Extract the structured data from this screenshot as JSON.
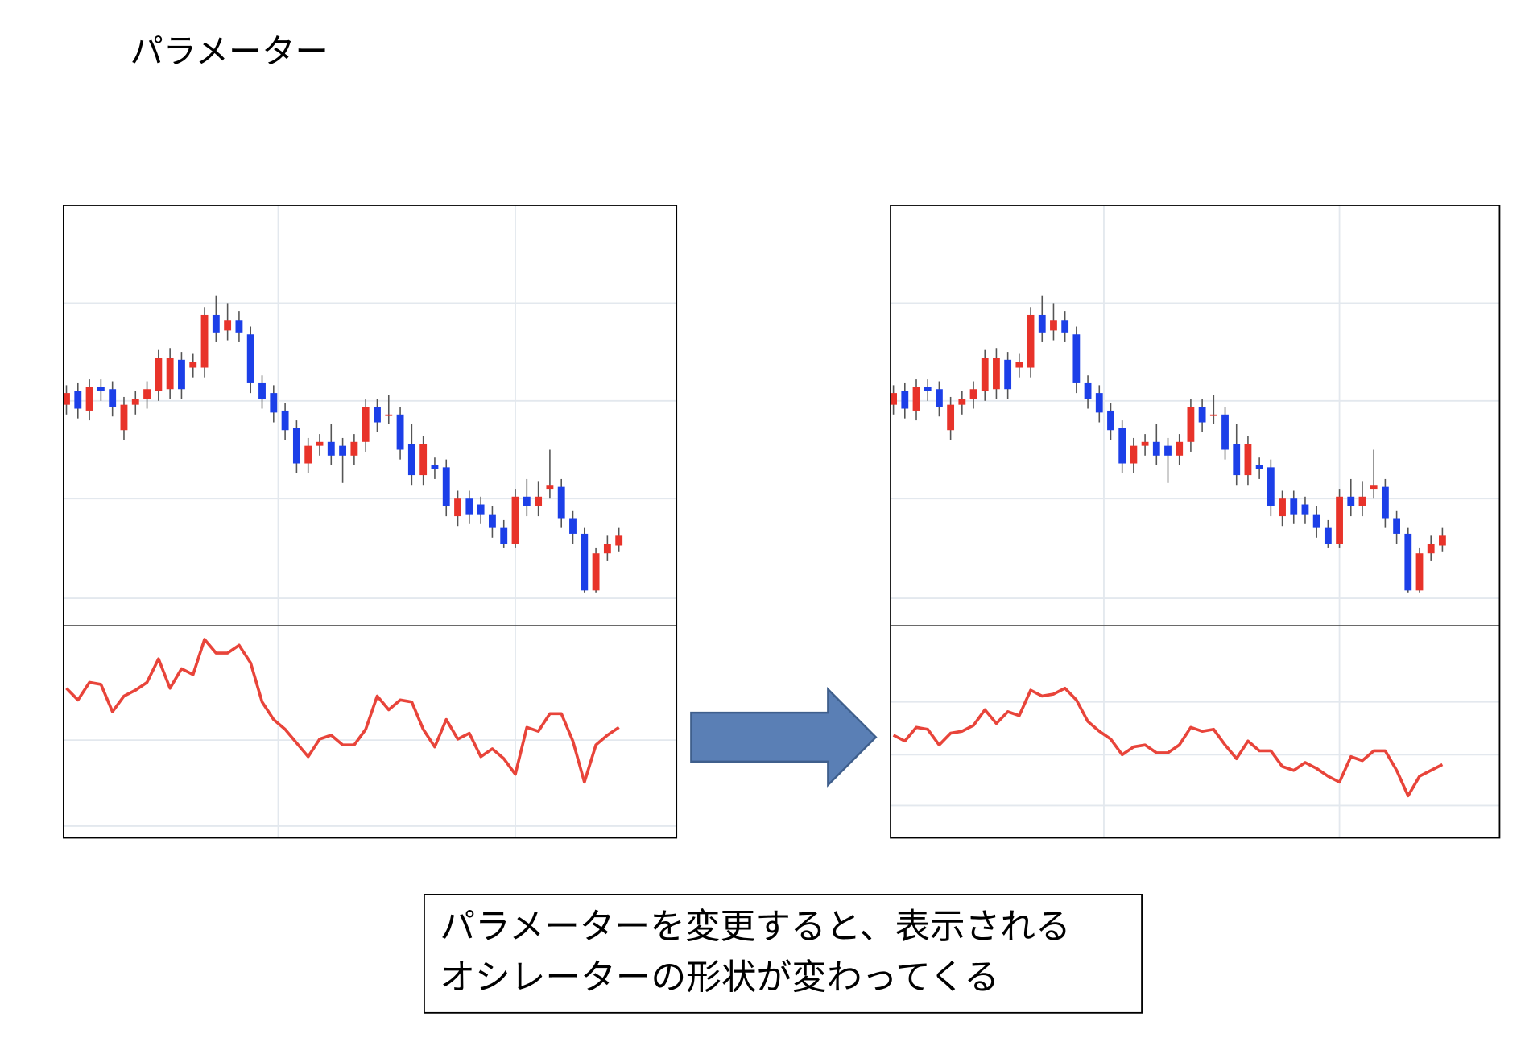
{
  "title": "パラメーター",
  "chart_data": [
    {
      "type": "candlestick",
      "open": [
        226,
        240,
        220,
        244,
        242,
        200,
        226,
        232,
        240,
        242,
        272,
        264,
        264,
        318,
        302,
        312,
        298,
        248,
        238,
        220,
        202,
        166,
        184,
        188,
        184,
        174,
        188,
        224,
        216,
        216,
        186,
        154,
        164,
        162,
        112,
        130,
        124,
        114,
        100,
        84,
        132,
        122,
        140,
        142,
        110,
        94,
        36,
        74,
        82
      ],
      "high": [
        246,
        248,
        252,
        252,
        250,
        234,
        240,
        250,
        282,
        284,
        280,
        278,
        326,
        338,
        330,
        322,
        306,
        256,
        246,
        228,
        210,
        192,
        196,
        206,
        192,
        196,
        232,
        232,
        236,
        224,
        206,
        194,
        172,
        170,
        138,
        138,
        132,
        122,
        108,
        140,
        150,
        148,
        180,
        150,
        118,
        100,
        80,
        92,
        100
      ],
      "low": [
        216,
        212,
        210,
        230,
        214,
        190,
        216,
        222,
        230,
        232,
        232,
        254,
        254,
        290,
        292,
        290,
        238,
        222,
        208,
        190,
        156,
        156,
        174,
        164,
        146,
        164,
        178,
        198,
        206,
        170,
        144,
        144,
        150,
        112,
        102,
        104,
        104,
        90,
        80,
        80,
        112,
        112,
        130,
        100,
        84,
        34,
        34,
        66,
        76
      ],
      "close": [
        238,
        222,
        244,
        240,
        224,
        226,
        232,
        242,
        274,
        274,
        242,
        270,
        318,
        300,
        312,
        300,
        248,
        232,
        218,
        200,
        166,
        184,
        188,
        174,
        174,
        188,
        224,
        208,
        216,
        180,
        154,
        186,
        160,
        122,
        130,
        114,
        114,
        100,
        84,
        132,
        122,
        132,
        144,
        110,
        94,
        36,
        74,
        84,
        92
      ],
      "up_color": "#e8332a",
      "down_color": "#1c3fe8",
      "xlim": [
        -0.25,
        53
      ],
      "xticks": [
        18.4,
        39
      ],
      "ylim": [
        0,
        430
      ],
      "yticks": [
        28,
        130,
        230,
        330
      ],
      "grid": true,
      "oscillator": {
        "type": "line",
        "color": "#e8443a",
        "values": [
          153,
          141,
          159,
          157,
          129,
          145,
          151,
          159,
          183,
          153,
          173,
          167,
          203,
          189,
          189,
          197,
          179,
          139,
          121,
          111,
          97,
          83,
          101,
          105,
          95,
          95,
          111,
          145,
          131,
          141,
          139,
          111,
          93,
          121,
          101,
          107,
          83,
          91,
          81,
          65,
          113,
          109,
          127,
          127,
          99,
          57,
          95,
          105,
          113
        ],
        "ylim": [
          0,
          217
        ],
        "yticks": [
          12,
          100
        ]
      }
    },
    {
      "type": "candlestick",
      "open": [
        226,
        240,
        220,
        244,
        242,
        200,
        226,
        232,
        240,
        242,
        272,
        264,
        264,
        318,
        302,
        312,
        298,
        248,
        238,
        220,
        202,
        166,
        184,
        188,
        184,
        174,
        188,
        224,
        216,
        216,
        186,
        154,
        164,
        162,
        112,
        130,
        124,
        114,
        100,
        84,
        132,
        122,
        140,
        142,
        110,
        94,
        36,
        74,
        82
      ],
      "high": [
        246,
        248,
        252,
        252,
        250,
        234,
        240,
        250,
        282,
        284,
        280,
        278,
        326,
        338,
        330,
        322,
        306,
        256,
        246,
        228,
        210,
        192,
        196,
        206,
        192,
        196,
        232,
        232,
        236,
        224,
        206,
        194,
        172,
        170,
        138,
        138,
        132,
        122,
        108,
        140,
        150,
        148,
        180,
        150,
        118,
        100,
        80,
        92,
        100
      ],
      "low": [
        216,
        212,
        210,
        230,
        214,
        190,
        216,
        222,
        230,
        232,
        232,
        254,
        254,
        290,
        292,
        290,
        238,
        222,
        208,
        190,
        156,
        156,
        174,
        164,
        146,
        164,
        178,
        198,
        206,
        170,
        144,
        144,
        150,
        112,
        102,
        104,
        104,
        90,
        80,
        80,
        112,
        112,
        130,
        100,
        84,
        34,
        34,
        66,
        76
      ],
      "close": [
        238,
        222,
        244,
        240,
        224,
        226,
        232,
        242,
        274,
        274,
        242,
        270,
        318,
        300,
        312,
        300,
        248,
        232,
        218,
        200,
        166,
        184,
        188,
        174,
        174,
        188,
        224,
        208,
        216,
        180,
        154,
        186,
        160,
        122,
        130,
        114,
        114,
        100,
        84,
        132,
        122,
        132,
        144,
        110,
        94,
        36,
        74,
        84,
        92
      ],
      "up_color": "#e8332a",
      "down_color": "#1c3fe8",
      "xlim": [
        -0.25,
        53
      ],
      "xticks": [
        18.4,
        39
      ],
      "ylim": [
        0,
        430
      ],
      "yticks": [
        28,
        130,
        230,
        330
      ],
      "grid": true,
      "oscillator": {
        "type": "line",
        "color": "#e8443a",
        "values": [
          105,
          99,
          113,
          111,
          95,
          107,
          109,
          115,
          131,
          117,
          129,
          125,
          151,
          145,
          147,
          153,
          141,
          119,
          109,
          101,
          85,
          93,
          95,
          87,
          87,
          95,
          113,
          109,
          111,
          95,
          81,
          99,
          89,
          89,
          73,
          69,
          77,
          71,
          63,
          57,
          83,
          79,
          89,
          89,
          69,
          43,
          63,
          69,
          75
        ],
        "ylim": [
          0,
          217
        ],
        "yticks": [
          33,
          85,
          139
        ]
      }
    }
  ],
  "caption": [
    "パラメーターを変更すると、表示される",
    "オシレーターの形状が変わってくる"
  ]
}
